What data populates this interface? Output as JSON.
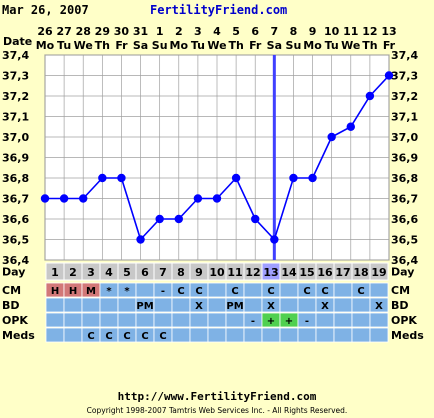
{
  "header": {
    "date": "Mar 26, 2007",
    "site": "FertilityFriend.com"
  },
  "colors": {
    "background": "#ffffc8",
    "plot_bg": "#ffffff",
    "grid": "#a0a0a0",
    "line": "#0000ff",
    "marker": "#0000ff",
    "ovulation_line": "#4040ff",
    "row_blue": "#7fb2e5",
    "row_grey": "#c8c8c8",
    "cm_highlight": "#d27878",
    "opk_positive": "#50d050"
  },
  "chart_data": {
    "type": "line",
    "x_dates": [
      "26",
      "27",
      "28",
      "29",
      "30",
      "31",
      "1",
      "2",
      "3",
      "4",
      "5",
      "6",
      "7",
      "8",
      "9",
      "10",
      "11",
      "12",
      "13"
    ],
    "x_weekdays": [
      "Mo",
      "Tu",
      "We",
      "Th",
      "Fr",
      "Sa",
      "Su",
      "Mo",
      "Tu",
      "We",
      "Th",
      "Fr",
      "Sa",
      "Su",
      "Mo",
      "Tu",
      "We",
      "Th",
      "Fr"
    ],
    "cycle_days": [
      "1",
      "2",
      "3",
      "4",
      "5",
      "6",
      "7",
      "8",
      "9",
      "10",
      "11",
      "12",
      "13",
      "14",
      "15",
      "16",
      "17",
      "18",
      "19"
    ],
    "y_values": [
      36.7,
      36.7,
      36.7,
      36.8,
      36.8,
      36.5,
      36.6,
      36.6,
      36.7,
      36.7,
      36.8,
      36.6,
      36.5,
      36.8,
      36.8,
      37.0,
      37.05,
      37.2,
      37.3
    ],
    "y_ticks": [
      "37,4",
      "37,3",
      "37,2",
      "37,1",
      "37,0",
      "36,9",
      "36,8",
      "36,7",
      "36,6",
      "36,5",
      "36,4"
    ],
    "ylim": [
      36.4,
      37.4
    ],
    "ovulation_day_index": 12,
    "grid": true
  },
  "labels": {
    "date": "Date",
    "day": "Day",
    "cm": "CM",
    "bd": "BD",
    "opk": "OPK",
    "meds": "Meds"
  },
  "rows": {
    "cm": [
      "H",
      "H",
      "M",
      "*",
      "*",
      "",
      "-",
      "C",
      "C",
      "",
      "C",
      "",
      "C",
      "",
      "C",
      "C",
      "",
      "C",
      ""
    ],
    "bd": [
      "",
      "",
      "",
      "",
      "",
      "PM",
      "",
      "",
      "X",
      "",
      "PM",
      "",
      "X",
      "",
      "",
      "X",
      "",
      "",
      "X"
    ],
    "opk": [
      "",
      "",
      "",
      "",
      "",
      "",
      "",
      "",
      "",
      "",
      "",
      "-",
      "+",
      "+",
      "-",
      "",
      "",
      "",
      ""
    ],
    "meds": [
      "",
      "",
      "C",
      "C",
      "C",
      "C",
      "C",
      "",
      "",
      "",
      "",
      "",
      "",
      "",
      "",
      "",
      "",
      "",
      ""
    ]
  },
  "footer": {
    "url": "http://www.FertilityFriend.com",
    "copyright": "Copyright 1998-2007 Tamtris Web Services Inc. - All Rights Reserved."
  }
}
